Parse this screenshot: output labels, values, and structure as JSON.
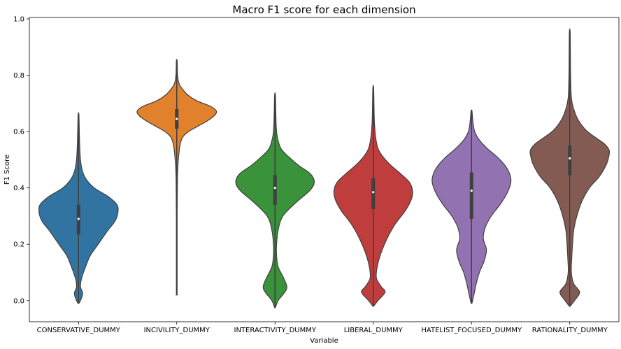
{
  "chart_data": {
    "type": "violin",
    "title": "Macro F1 score for each dimension",
    "xlabel": "Variable",
    "ylabel": "F1 Score",
    "ylim": [
      -0.075,
      1.005
    ],
    "yticks": [
      "0.0",
      "0.2",
      "0.4",
      "0.6",
      "0.8",
      "1.0"
    ],
    "grid": false,
    "categories": [
      "CONSERVATIVE_DUMMY",
      "INCIVILITY_DUMMY",
      "INTERACTIVITY_DUMMY",
      "LIBERAL_DUMMY",
      "HATELIST_FOCUSED_DUMMY",
      "RATIONALITY_DUMMY"
    ],
    "series": [
      {
        "category": "CONSERVATIVE_DUMMY",
        "color": "#3274a1",
        "min": -0.01,
        "max": 0.66,
        "q1": 0.235,
        "median": 0.29,
        "q3": 0.34,
        "whisker_low": 0.02,
        "whisker_high": 0.45,
        "density": [
          [
            -0.01,
            0.01
          ],
          [
            0.0,
            0.05
          ],
          [
            0.02,
            0.1
          ],
          [
            0.03,
            0.1
          ],
          [
            0.05,
            0.05
          ],
          [
            0.08,
            0.08
          ],
          [
            0.12,
            0.18
          ],
          [
            0.16,
            0.3
          ],
          [
            0.2,
            0.5
          ],
          [
            0.25,
            0.75
          ],
          [
            0.28,
            0.92
          ],
          [
            0.31,
            1.0
          ],
          [
            0.34,
            0.98
          ],
          [
            0.37,
            0.75
          ],
          [
            0.4,
            0.4
          ],
          [
            0.43,
            0.2
          ],
          [
            0.46,
            0.1
          ],
          [
            0.5,
            0.05
          ],
          [
            0.55,
            0.03
          ],
          [
            0.6,
            0.02
          ],
          [
            0.66,
            0.01
          ]
        ]
      },
      {
        "category": "INCIVILITY_DUMMY",
        "color": "#e1812c",
        "min": 0.02,
        "max": 0.85,
        "q1": 0.61,
        "median": 0.645,
        "q3": 0.68,
        "whisker_low": 0.56,
        "whisker_high": 0.77,
        "density": [
          [
            0.02,
            0.01
          ],
          [
            0.1,
            0.01
          ],
          [
            0.2,
            0.01
          ],
          [
            0.3,
            0.01
          ],
          [
            0.4,
            0.015
          ],
          [
            0.45,
            0.02
          ],
          [
            0.5,
            0.04
          ],
          [
            0.55,
            0.08
          ],
          [
            0.58,
            0.15
          ],
          [
            0.6,
            0.3
          ],
          [
            0.62,
            0.55
          ],
          [
            0.64,
            0.8
          ],
          [
            0.66,
            0.98
          ],
          [
            0.675,
            1.0
          ],
          [
            0.69,
            0.85
          ],
          [
            0.71,
            0.5
          ],
          [
            0.73,
            0.28
          ],
          [
            0.75,
            0.15
          ],
          [
            0.77,
            0.06
          ],
          [
            0.8,
            0.02
          ],
          [
            0.85,
            0.01
          ]
        ]
      },
      {
        "category": "INTERACTIVITY_DUMMY",
        "color": "#3a923a",
        "min": -0.025,
        "max": 0.73,
        "q1": 0.34,
        "median": 0.4,
        "q3": 0.445,
        "whisker_low": 0.2,
        "whisker_high": 0.55,
        "density": [
          [
            -0.025,
            0.01
          ],
          [
            0.0,
            0.08
          ],
          [
            0.03,
            0.25
          ],
          [
            0.05,
            0.3
          ],
          [
            0.08,
            0.22
          ],
          [
            0.12,
            0.08
          ],
          [
            0.16,
            0.04
          ],
          [
            0.2,
            0.04
          ],
          [
            0.25,
            0.08
          ],
          [
            0.3,
            0.2
          ],
          [
            0.35,
            0.55
          ],
          [
            0.39,
            0.88
          ],
          [
            0.42,
            1.0
          ],
          [
            0.45,
            0.9
          ],
          [
            0.48,
            0.6
          ],
          [
            0.51,
            0.35
          ],
          [
            0.54,
            0.15
          ],
          [
            0.58,
            0.06
          ],
          [
            0.62,
            0.03
          ],
          [
            0.67,
            0.02
          ],
          [
            0.73,
            0.01
          ]
        ]
      },
      {
        "category": "LIBERAL_DUMMY",
        "color": "#c03d3e",
        "min": -0.02,
        "max": 0.755,
        "q1": 0.325,
        "median": 0.385,
        "q3": 0.435,
        "whisker_low": 0.1,
        "whisker_high": 0.585,
        "density": [
          [
            -0.02,
            0.01
          ],
          [
            0.0,
            0.12
          ],
          [
            0.03,
            0.3
          ],
          [
            0.05,
            0.2
          ],
          [
            0.08,
            0.08
          ],
          [
            0.12,
            0.1
          ],
          [
            0.17,
            0.2
          ],
          [
            0.22,
            0.35
          ],
          [
            0.27,
            0.55
          ],
          [
            0.32,
            0.82
          ],
          [
            0.36,
            0.97
          ],
          [
            0.39,
            1.0
          ],
          [
            0.42,
            0.92
          ],
          [
            0.45,
            0.7
          ],
          [
            0.48,
            0.45
          ],
          [
            0.51,
            0.25
          ],
          [
            0.54,
            0.12
          ],
          [
            0.58,
            0.06
          ],
          [
            0.63,
            0.03
          ],
          [
            0.68,
            0.02
          ],
          [
            0.755,
            0.01
          ]
        ]
      },
      {
        "category": "HATELIST_FOCUSED_DUMMY",
        "color": "#9372b2",
        "min": -0.01,
        "max": 0.675,
        "q1": 0.29,
        "median": 0.39,
        "q3": 0.455,
        "whisker_low": 0.05,
        "whisker_high": 0.62,
        "density": [
          [
            -0.01,
            0.01
          ],
          [
            0.02,
            0.06
          ],
          [
            0.06,
            0.12
          ],
          [
            0.1,
            0.2
          ],
          [
            0.14,
            0.32
          ],
          [
            0.18,
            0.38
          ],
          [
            0.22,
            0.3
          ],
          [
            0.26,
            0.35
          ],
          [
            0.3,
            0.5
          ],
          [
            0.34,
            0.72
          ],
          [
            0.38,
            0.9
          ],
          [
            0.42,
            1.0
          ],
          [
            0.45,
            0.97
          ],
          [
            0.48,
            0.85
          ],
          [
            0.51,
            0.65
          ],
          [
            0.54,
            0.4
          ],
          [
            0.57,
            0.2
          ],
          [
            0.6,
            0.08
          ],
          [
            0.63,
            0.04
          ],
          [
            0.66,
            0.02
          ],
          [
            0.675,
            0.01
          ]
        ]
      },
      {
        "category": "RATIONALITY_DUMMY",
        "color": "#845b53",
        "min": -0.02,
        "max": 0.955,
        "q1": 0.445,
        "median": 0.505,
        "q3": 0.55,
        "whisker_low": 0.05,
        "whisker_high": 0.7,
        "density": [
          [
            -0.02,
            0.01
          ],
          [
            0.0,
            0.12
          ],
          [
            0.03,
            0.25
          ],
          [
            0.06,
            0.1
          ],
          [
            0.1,
            0.04
          ],
          [
            0.15,
            0.05
          ],
          [
            0.2,
            0.07
          ],
          [
            0.25,
            0.1
          ],
          [
            0.3,
            0.18
          ],
          [
            0.35,
            0.3
          ],
          [
            0.4,
            0.5
          ],
          [
            0.44,
            0.75
          ],
          [
            0.48,
            0.92
          ],
          [
            0.51,
            0.99
          ],
          [
            0.535,
            1.0
          ],
          [
            0.56,
            0.85
          ],
          [
            0.6,
            0.45
          ],
          [
            0.64,
            0.22
          ],
          [
            0.68,
            0.1
          ],
          [
            0.72,
            0.04
          ],
          [
            0.8,
            0.02
          ],
          [
            0.88,
            0.015
          ],
          [
            0.955,
            0.01
          ]
        ]
      }
    ]
  }
}
